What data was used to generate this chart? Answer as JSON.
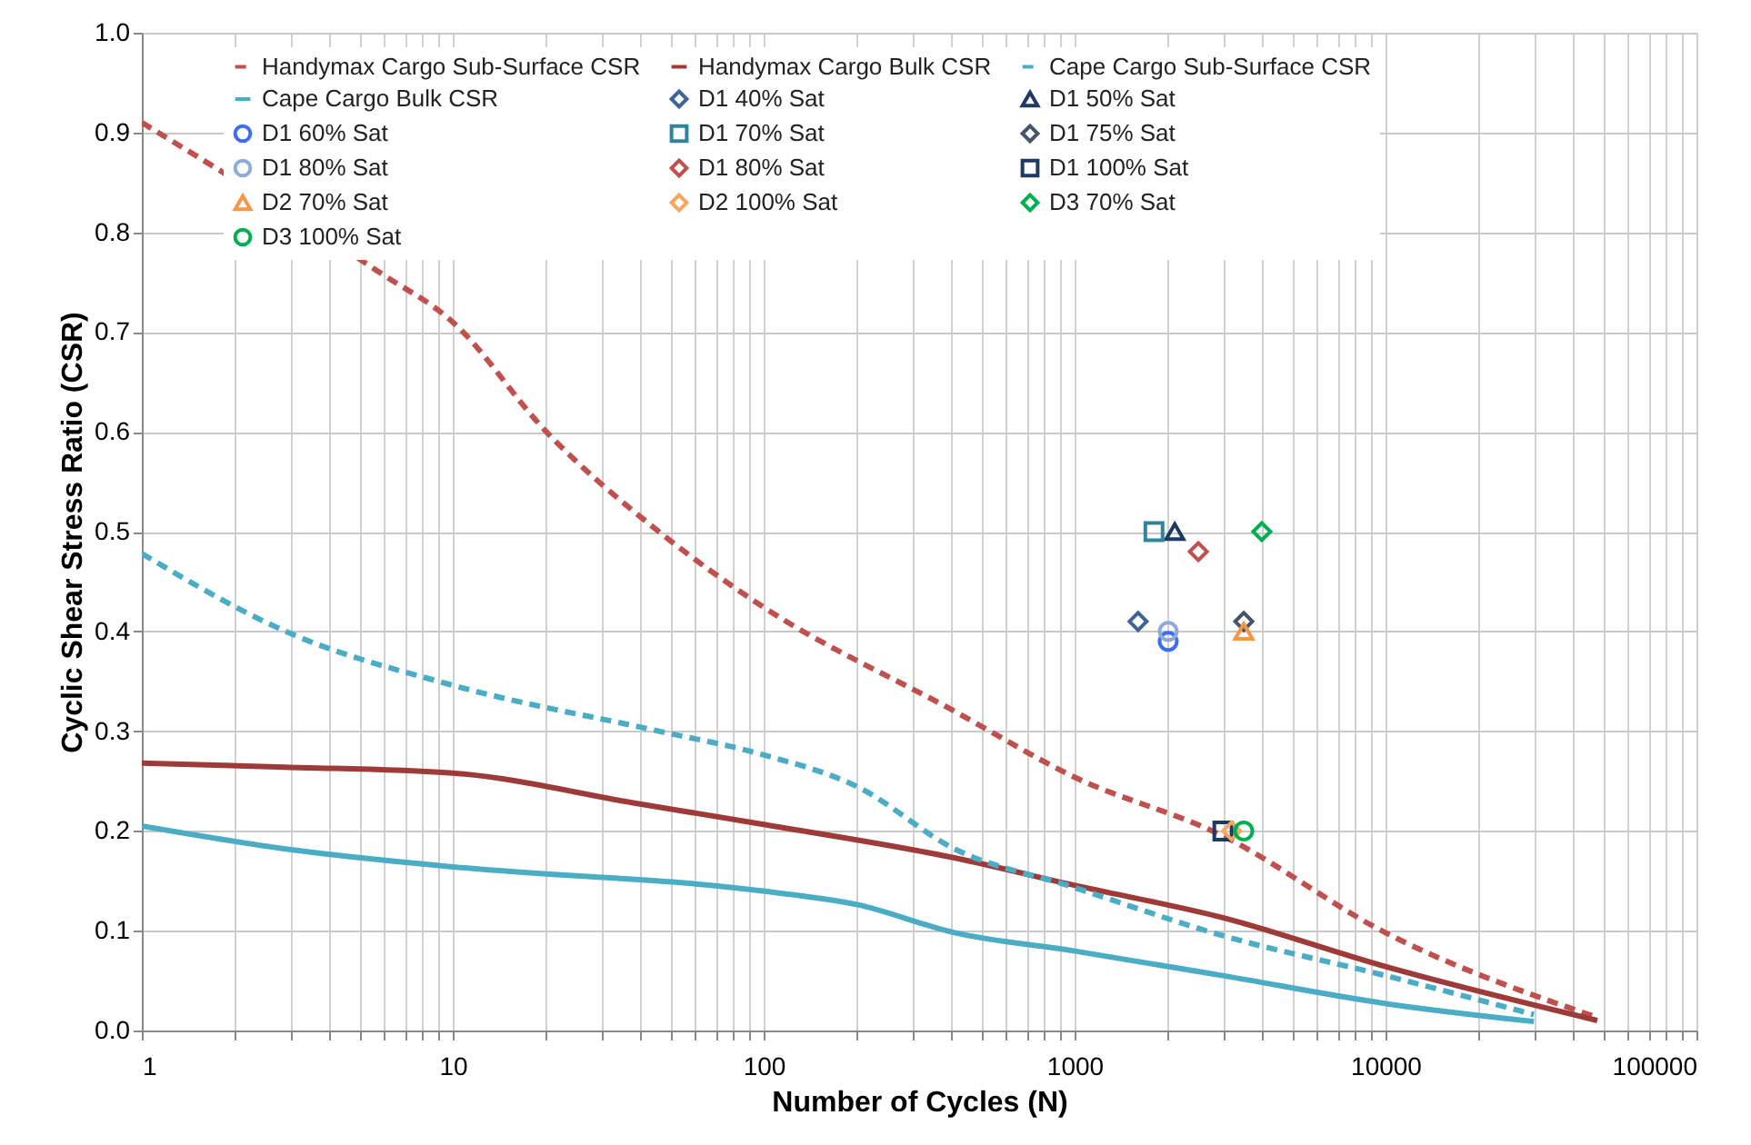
{
  "chart_data": {
    "type": "line",
    "xlabel": "Number of Cycles (N)",
    "ylabel": "Cyclic Shear Stress Ratio (CSR)",
    "log": "x",
    "grid": true,
    "legend": "top",
    "xlim": [
      1,
      100000
    ],
    "ylim": [
      0,
      1
    ],
    "xticks": [
      1,
      {
        "value": 2,
        "label": null
      },
      {
        "value": 3,
        "label": null
      },
      {
        "value": 4,
        "label": null
      },
      {
        "value": 5,
        "label": null
      },
      {
        "value": 6,
        "label": null
      },
      {
        "value": 7,
        "label": null
      },
      {
        "value": 8,
        "label": null
      },
      {
        "value": 9,
        "label": null
      },
      10,
      {
        "value": 20,
        "label": null
      },
      {
        "value": 30,
        "label": null
      },
      {
        "value": 40,
        "label": null
      },
      {
        "value": 50,
        "label": null
      },
      {
        "value": 60,
        "label": null
      },
      {
        "value": 70,
        "label": null
      },
      {
        "value": 80,
        "label": null
      },
      {
        "value": 90,
        "label": null
      },
      100,
      {
        "value": 200,
        "label": null
      },
      {
        "value": 300,
        "label": null
      },
      {
        "value": 400,
        "label": null
      },
      {
        "value": 500,
        "label": null
      },
      {
        "value": 600,
        "label": null
      },
      {
        "value": 700,
        "label": null
      },
      {
        "value": 800,
        "label": null
      },
      {
        "value": 900,
        "label": null
      },
      1000,
      {
        "value": 2000,
        "label": null
      },
      {
        "value": 3000,
        "label": null
      },
      {
        "value": 4000,
        "label": null
      },
      {
        "value": 5000,
        "label": null
      },
      {
        "value": 6000,
        "label": null
      },
      {
        "value": 7000,
        "label": null
      },
      {
        "value": 8000,
        "label": null
      },
      {
        "value": 9000,
        "label": null
      },
      10000,
      {
        "value": 20000,
        "label": null
      },
      {
        "value": 30000,
        "label": null
      },
      {
        "value": 40000,
        "label": null
      },
      {
        "value": 50000,
        "label": null
      },
      {
        "value": 60000,
        "label": null
      },
      {
        "value": 70000,
        "label": null
      },
      {
        "value": 80000,
        "label": null
      },
      {
        "value": 90000,
        "label": null
      },
      100000
    ],
    "yticks": [
      {
        "value": 0,
        "label": "0.0"
      },
      0.1,
      0.2,
      0.3,
      0.4,
      0.5,
      0.6,
      0.7,
      0.8,
      0.9,
      {
        "value": 1,
        "label": "1.0"
      }
    ],
    "series": [
      {
        "name": "Handymax Cargo Sub-Surface CSR",
        "line_style": "dashed",
        "color": "#c0504d",
        "x": [
          1,
          5.8,
          10,
          20,
          46,
          98,
          411,
          983,
          3000,
          10000,
          48000
        ],
        "values": [
          0.91,
          0.76,
          0.71,
          0.6,
          0.5,
          0.426,
          0.32,
          0.255,
          0.195,
          0.098,
          0.013
        ]
      },
      {
        "name": "Handymax Cargo Bulk CSR",
        "line_style": "solid",
        "color": "#9e3b39",
        "x": [
          1,
          2.9,
          10,
          40,
          98,
          411,
          983,
          3000,
          10000,
          48000
        ],
        "values": [
          0.268,
          0.264,
          0.258,
          0.227,
          0.207,
          0.173,
          0.146,
          0.113,
          0.064,
          0.01
        ]
      },
      {
        "name": "Cape Cargo Sub-Surface CSR",
        "line_style": "dashed",
        "color": "#4bacc6",
        "x": [
          1,
          2.9,
          10,
          46,
          98,
          201,
          411,
          983,
          3000,
          10000,
          30000
        ],
        "values": [
          0.478,
          0.4,
          0.346,
          0.3,
          0.277,
          0.244,
          0.182,
          0.144,
          0.095,
          0.055,
          0.016
        ]
      },
      {
        "name": "Cape Cargo Bulk CSR",
        "line_style": "solid",
        "color": "#4bacc6",
        "x": [
          1,
          2.9,
          10,
          98,
          201,
          411,
          983,
          3000,
          10000,
          30000
        ],
        "values": [
          0.205,
          0.182,
          0.164,
          0.14,
          0.126,
          0.098,
          0.08,
          0.055,
          0.027,
          0.009
        ]
      },
      {
        "name": "D1 40% Sat",
        "type": "scatter",
        "marker": "diamond",
        "color": "#3e6496",
        "x": [
          1600
        ],
        "values": [
          0.41
        ]
      },
      {
        "name": "D1 50% Sat",
        "type": "scatter",
        "marker": "triangle",
        "color": "#1f3864",
        "x": [
          2100
        ],
        "values": [
          0.5
        ]
      },
      {
        "name": "D1 60% Sat",
        "type": "scatter",
        "marker": "circle",
        "color": "#3d6df0",
        "x": [
          2000
        ],
        "values": [
          0.39
        ]
      },
      {
        "name": "D1 70% Sat",
        "type": "scatter",
        "marker": "square",
        "color": "#31849b",
        "x": [
          1800
        ],
        "values": [
          0.5
        ]
      },
      {
        "name": "D1 75% Sat",
        "type": "scatter",
        "marker": "diamond",
        "color": "#44546a",
        "x": [
          3500
        ],
        "values": [
          0.41
        ]
      },
      {
        "name": "D1 80% Sat",
        "type": "scatter",
        "marker": "circle",
        "color": "#8eaadb",
        "x": [
          2000
        ],
        "values": [
          0.4
        ]
      },
      {
        "name": "D1 80% Sat",
        "type": "scatter",
        "marker": "diamond",
        "color": "#c0504d",
        "x": [
          2500
        ],
        "values": [
          0.48
        ]
      },
      {
        "name": "D1 100% Sat",
        "type": "scatter",
        "marker": "square",
        "color": "#1f3864",
        "x": [
          3000
        ],
        "values": [
          0.2
        ]
      },
      {
        "name": "D2 70% Sat",
        "type": "scatter",
        "marker": "triangle",
        "color": "#f79646",
        "x": [
          3500
        ],
        "values": [
          0.4
        ]
      },
      {
        "name": "D2 100% Sat",
        "type": "scatter",
        "marker": "diamond",
        "color": "#f8a65f",
        "x": [
          3200
        ],
        "values": [
          0.2
        ]
      },
      {
        "name": "D3 70% Sat",
        "type": "scatter",
        "marker": "diamond",
        "color": "#00b050",
        "x": [
          4000
        ],
        "values": [
          0.5
        ]
      },
      {
        "name": "D3 100% Sat",
        "type": "scatter",
        "marker": "circle",
        "color": "#00b050",
        "x": [
          3500
        ],
        "values": [
          0.2
        ]
      }
    ]
  }
}
